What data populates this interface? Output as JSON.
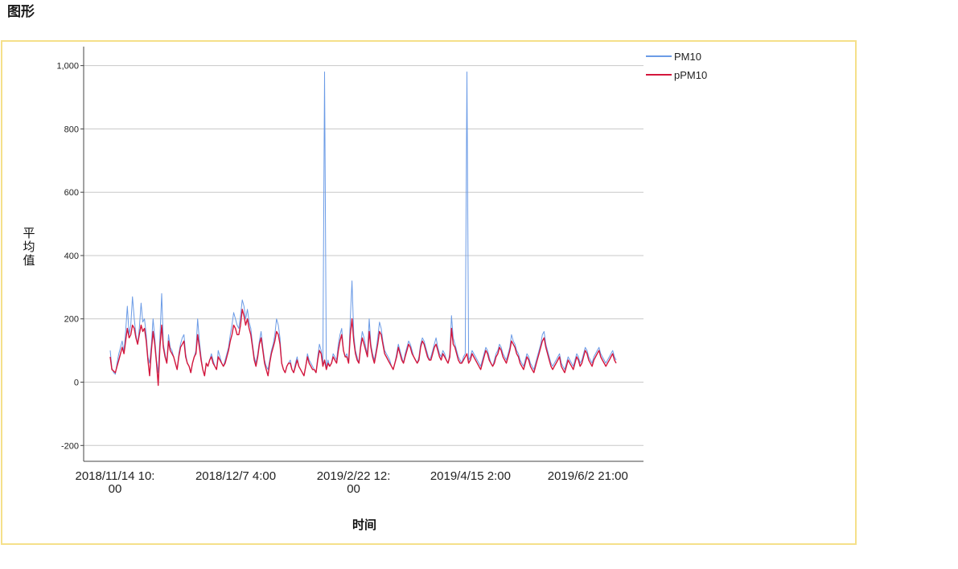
{
  "page": {
    "section_title": "图形"
  },
  "chart_data": {
    "type": "line",
    "xlabel": "时间",
    "ylabel": "平均值",
    "ylim": [
      -250,
      1060
    ],
    "yticks": [
      -200,
      0,
      200,
      400,
      600,
      800,
      1000
    ],
    "ytick_labels": [
      "-200",
      "0",
      "200",
      "400",
      "600",
      "800",
      "1,000"
    ],
    "grid": "horizontal",
    "legend_position": "top-right",
    "xtick_labels": [
      [
        "2018/11/14 10:",
        "00"
      ],
      [
        "2018/12/7 4:00"
      ],
      [
        "2019/2/22 12:",
        "00"
      ],
      [
        "2019/4/15 2:00"
      ],
      [
        "2019/6/2 21:00"
      ]
    ],
    "xtick_positions": [
      0,
      0.2385,
      0.4715,
      0.7025,
      0.9345
    ],
    "series": [
      {
        "name": "PM10",
        "color": "#6b9be6",
        "values": [
          100,
          45,
          30,
          25,
          60,
          90,
          110,
          130,
          95,
          160,
          240,
          150,
          180,
          270,
          200,
          150,
          120,
          170,
          250,
          190,
          200,
          150,
          80,
          60,
          120,
          200,
          140,
          70,
          30,
          140,
          280,
          120,
          90,
          60,
          150,
          110,
          100,
          80,
          60,
          40,
          90,
          120,
          140,
          150,
          90,
          60,
          50,
          30,
          60,
          80,
          100,
          200,
          130,
          80,
          40,
          20,
          60,
          50,
          70,
          90,
          70,
          50,
          40,
          100,
          80,
          60,
          50,
          70,
          90,
          110,
          150,
          180,
          220,
          200,
          180,
          170,
          210,
          260,
          240,
          200,
          230,
          190,
          170,
          120,
          80,
          60,
          90,
          130,
          160,
          110,
          70,
          50,
          40,
          70,
          100,
          120,
          150,
          200,
          180,
          140,
          60,
          40,
          30,
          50,
          60,
          70,
          40,
          30,
          60,
          80,
          50,
          40,
          30,
          20,
          50,
          90,
          70,
          60,
          50,
          40,
          30,
          80,
          120,
          100,
          60,
          980,
          40,
          70,
          50,
          60,
          90,
          80,
          70,
          120,
          150,
          170,
          100,
          80,
          90,
          60,
          200,
          320,
          150,
          100,
          80,
          60,
          120,
          160,
          140,
          110,
          90,
          200,
          120,
          90,
          70,
          100,
          140,
          190,
          170,
          130,
          100,
          90,
          80,
          70,
          50,
          40,
          60,
          90,
          120,
          100,
          80,
          60,
          90,
          110,
          130,
          120,
          100,
          80,
          70,
          60,
          80,
          120,
          140,
          130,
          110,
          90,
          70,
          80,
          100,
          120,
          140,
          110,
          90,
          80,
          100,
          90,
          70,
          60,
          90,
          210,
          140,
          120,
          100,
          80,
          70,
          60,
          80,
          90,
          980,
          70,
          80,
          100,
          90,
          80,
          70,
          60,
          50,
          70,
          90,
          110,
          100,
          80,
          60,
          50,
          70,
          90,
          100,
          120,
          110,
          90,
          80,
          70,
          90,
          110,
          150,
          130,
          120,
          100,
          90,
          70,
          60,
          50,
          70,
          90,
          80,
          60,
          50,
          40,
          60,
          80,
          100,
          120,
          150,
          160,
          120,
          100,
          80,
          60,
          50,
          60,
          70,
          80,
          90,
          60,
          50,
          40,
          60,
          80,
          70,
          60,
          50,
          70,
          90,
          80,
          60,
          70,
          90,
          110,
          100,
          80,
          70,
          60,
          80,
          90,
          100,
          110,
          90,
          80,
          70,
          60,
          70,
          80,
          90,
          100,
          80,
          70
        ]
      },
      {
        "name": "pPM10",
        "color": "#d4163c",
        "values": [
          80,
          40,
          35,
          30,
          50,
          70,
          90,
          110,
          90,
          130,
          170,
          140,
          150,
          180,
          170,
          140,
          120,
          150,
          180,
          160,
          170,
          130,
          70,
          20,
          100,
          160,
          120,
          60,
          -10,
          110,
          180,
          110,
          80,
          60,
          130,
          100,
          90,
          80,
          60,
          40,
          80,
          110,
          120,
          130,
          80,
          60,
          50,
          30,
          60,
          80,
          90,
          150,
          110,
          70,
          40,
          20,
          60,
          50,
          70,
          80,
          60,
          50,
          40,
          80,
          70,
          60,
          50,
          60,
          80,
          100,
          130,
          150,
          180,
          170,
          150,
          150,
          180,
          230,
          210,
          180,
          200,
          170,
          150,
          110,
          70,
          50,
          80,
          120,
          140,
          100,
          60,
          40,
          20,
          60,
          90,
          110,
          130,
          160,
          150,
          120,
          60,
          40,
          30,
          50,
          60,
          60,
          40,
          30,
          50,
          70,
          50,
          40,
          30,
          20,
          50,
          80,
          60,
          50,
          40,
          40,
          30,
          70,
          100,
          90,
          50,
          70,
          40,
          60,
          50,
          60,
          80,
          70,
          60,
          100,
          130,
          150,
          100,
          80,
          80,
          60,
          150,
          200,
          130,
          90,
          70,
          60,
          110,
          140,
          120,
          100,
          80,
          160,
          110,
          80,
          60,
          90,
          120,
          160,
          150,
          120,
          90,
          80,
          70,
          60,
          50,
          40,
          60,
          80,
          110,
          90,
          70,
          60,
          80,
          100,
          120,
          110,
          90,
          80,
          70,
          60,
          70,
          110,
          130,
          120,
          100,
          80,
          70,
          70,
          90,
          110,
          120,
          100,
          80,
          70,
          90,
          80,
          70,
          60,
          80,
          170,
          120,
          110,
          90,
          70,
          60,
          60,
          70,
          80,
          90,
          60,
          70,
          90,
          80,
          70,
          60,
          50,
          40,
          60,
          80,
          100,
          90,
          70,
          60,
          50,
          60,
          80,
          90,
          110,
          100,
          80,
          70,
          60,
          80,
          100,
          130,
          120,
          110,
          90,
          80,
          60,
          50,
          40,
          60,
          80,
          70,
          50,
          40,
          30,
          50,
          70,
          90,
          110,
          130,
          140,
          110,
          90,
          70,
          50,
          40,
          50,
          60,
          70,
          80,
          50,
          40,
          30,
          50,
          70,
          60,
          50,
          40,
          60,
          80,
          70,
          50,
          60,
          80,
          100,
          90,
          70,
          60,
          50,
          70,
          80,
          90,
          100,
          80,
          70,
          60,
          50,
          60,
          70,
          80,
          90,
          70,
          60
        ]
      }
    ]
  }
}
